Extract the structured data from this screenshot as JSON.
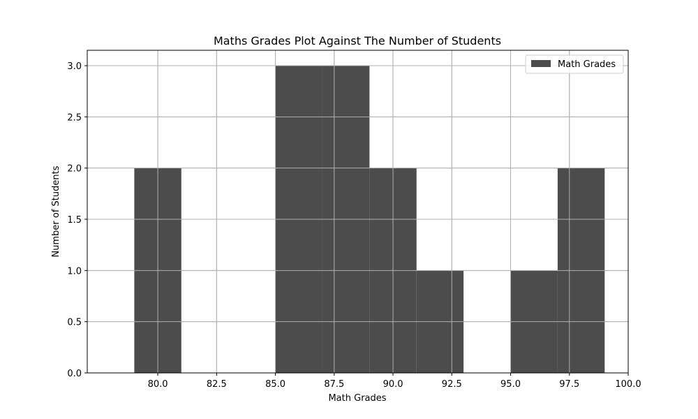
{
  "chart_data": {
    "type": "bar",
    "title": "Maths Grades Plot Against The Number of Students",
    "xlabel": "Math Grades",
    "ylabel": "Number of Students",
    "xlim": [
      77.0,
      100.0
    ],
    "ylim": [
      0,
      3.15
    ],
    "grid": true,
    "legend_position": "top-right",
    "bar_color": "#4c4c4c",
    "series": [
      {
        "name": "Math Grades",
        "bins": [
          {
            "start": 79,
            "end": 81,
            "count": 2
          },
          {
            "start": 81,
            "end": 83,
            "count": 0
          },
          {
            "start": 83,
            "end": 85,
            "count": 0
          },
          {
            "start": 85,
            "end": 87,
            "count": 3
          },
          {
            "start": 87,
            "end": 89,
            "count": 3
          },
          {
            "start": 89,
            "end": 91,
            "count": 2
          },
          {
            "start": 91,
            "end": 93,
            "count": 1
          },
          {
            "start": 93,
            "end": 95,
            "count": 0
          },
          {
            "start": 95,
            "end": 97,
            "count": 1
          },
          {
            "start": 97,
            "end": 99,
            "count": 2
          }
        ]
      }
    ],
    "x_ticks": [
      80.0,
      82.5,
      85.0,
      87.5,
      90.0,
      92.5,
      95.0,
      97.5,
      100.0
    ],
    "x_tick_labels": [
      "80.0",
      "82.5",
      "85.0",
      "87.5",
      "90.0",
      "92.5",
      "95.0",
      "97.5",
      "100.0"
    ],
    "y_ticks": [
      0.0,
      0.5,
      1.0,
      1.5,
      2.0,
      2.5,
      3.0
    ],
    "y_tick_labels": [
      "0.0",
      "0.5",
      "1.0",
      "1.5",
      "2.0",
      "2.5",
      "3.0"
    ]
  }
}
